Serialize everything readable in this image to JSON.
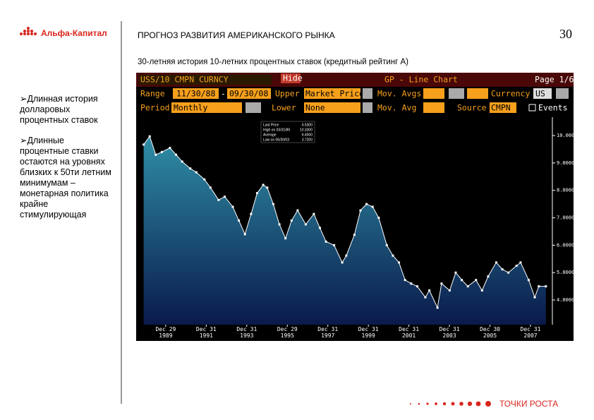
{
  "header": {
    "logo": "Альфа-Капитал",
    "title": "ПРОГНОЗ РАЗВИТИЯ АМЕРИКАНСКОГО РЫНКА",
    "page": "30"
  },
  "subtitle": "30-летняя история 10-летних процентных ставок (кредитный рейтинг А)",
  "bullets": [
    "Длинная история долларовых процентных ставок",
    "Длинные процентные ставки остаются на уровнях близких к 50ти летним минимумам – монетарная политика крайне стимулирующая"
  ],
  "footer": "ТОЧКИ РОСТА",
  "terminal": {
    "ticker": "USS/10 CMPN CURNCY",
    "hide": "Hide",
    "function": "GP - Line Chart",
    "page": "Page 1/6",
    "range_label": "Range",
    "range_from": "11/30/88",
    "range_sep": "-",
    "range_to": "09/30/08",
    "upper_label": "Upper",
    "upper_value": "Market Price",
    "mov_avgs": "Mov. Avgs",
    "currency_label": "Currency",
    "currency": "US",
    "period_label": "Period",
    "period": "Monthly",
    "lower_label": "Lower",
    "lower_value": "None",
    "mov_avg": "Mov. Avg",
    "source_label": "Source",
    "source": "CMPN",
    "events": "Events",
    "stats": [
      {
        "label": "Last Price",
        "value": "4.5300"
      },
      {
        "label": "High on 03/31/89",
        "value": "10.3300"
      },
      {
        "label": "Average",
        "value": "6.4500"
      },
      {
        "label": "Low on 06/30/03",
        "value": "3.7200"
      }
    ]
  },
  "chart_data": {
    "type": "area",
    "x": [
      1988.9,
      1989.2,
      1989.5,
      1989.8,
      1990.2,
      1990.5,
      1990.8,
      1991.2,
      1991.5,
      1991.9,
      1992.2,
      1992.6,
      1992.9,
      1993.3,
      1993.6,
      1993.9,
      1994.2,
      1994.5,
      1994.8,
      1995.0,
      1995.3,
      1995.6,
      1995.9,
      1996.2,
      1996.5,
      1996.9,
      1997.3,
      1997.6,
      1997.9,
      1998.3,
      1998.7,
      1998.9,
      1999.3,
      1999.6,
      1999.9,
      2000.2,
      2000.5,
      2000.9,
      2001.2,
      2001.5,
      2001.8,
      2002.1,
      2002.4,
      2002.8,
      2003.0,
      2003.4,
      2003.6,
      2004.0,
      2004.3,
      2004.6,
      2004.9,
      2005.3,
      2005.6,
      2005.9,
      2006.3,
      2006.6,
      2006.9,
      2007.3,
      2007.5,
      2007.9,
      2008.2,
      2008.4,
      2008.75
    ],
    "values": [
      9.67,
      9.97,
      9.3,
      9.4,
      9.55,
      9.3,
      9.05,
      8.8,
      8.66,
      8.4,
      8.1,
      7.65,
      7.77,
      7.4,
      6.9,
      6.4,
      7.14,
      7.9,
      8.2,
      8.1,
      7.5,
      6.76,
      6.25,
      6.9,
      7.27,
      6.76,
      7.14,
      6.63,
      6.13,
      6.0,
      5.37,
      5.62,
      6.38,
      7.27,
      7.5,
      7.4,
      7.0,
      6.0,
      5.62,
      5.37,
      4.73,
      4.6,
      4.5,
      4.1,
      4.35,
      3.72,
      4.6,
      4.35,
      5.0,
      4.73,
      4.5,
      4.73,
      4.35,
      4.86,
      5.37,
      5.12,
      5.0,
      5.25,
      5.37,
      4.73,
      4.1,
      4.5,
      4.5
    ],
    "color": "#ffffff",
    "xlim": [
      1988.67,
      2009.07
    ],
    "xticks": [
      {
        "value": 1989.99,
        "label": "Dec 29\n1989"
      },
      {
        "value": 1991.99,
        "label": "Dec 31\n1991"
      },
      {
        "value": 1993.99,
        "label": "Dec 31\n1993"
      },
      {
        "value": 1995.99,
        "label": "Dec 29\n1995"
      },
      {
        "value": 1997.99,
        "label": "Dec 31\n1997"
      },
      {
        "value": 1999.99,
        "label": "Dec 31\n1999"
      },
      {
        "value": 2001.99,
        "label": "Dec 31\n2001"
      },
      {
        "value": 2003.99,
        "label": "Dec 31\n2003"
      },
      {
        "value": 2005.99,
        "label": "Dec 30\n2005"
      },
      {
        "value": 2007.99,
        "label": "Dec 31\n2007"
      }
    ],
    "ylim": [
      3.1,
      10.67
    ],
    "yticks": [
      {
        "value": 4,
        "label": "4.0000"
      },
      {
        "value": 5,
        "label": "5.0000"
      },
      {
        "value": 6,
        "label": "6.0000"
      },
      {
        "value": 7,
        "label": "7.0000"
      },
      {
        "value": 8,
        "label": "8.0000"
      },
      {
        "value": 9,
        "label": "9.0000"
      },
      {
        "value": 10,
        "label": "10.0000"
      }
    ]
  }
}
